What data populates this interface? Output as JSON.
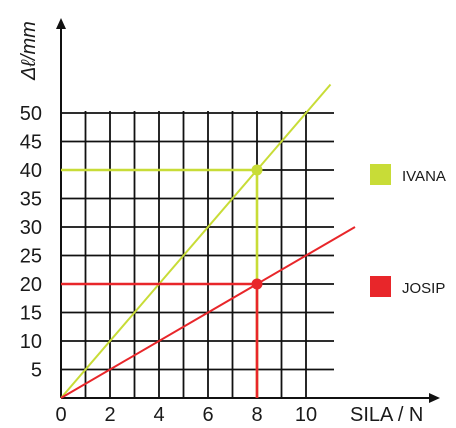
{
  "chart_data": {
    "type": "line",
    "xlabel": "SILA / N",
    "ylabel": "Δℓ/mm",
    "x_ticks": [
      0,
      2,
      4,
      6,
      8,
      10
    ],
    "y_ticks": [
      5,
      10,
      15,
      20,
      25,
      30,
      35,
      40,
      45,
      50
    ],
    "xlim": [
      0,
      11.5
    ],
    "ylim": [
      0,
      58
    ],
    "grid": true,
    "legend_position": "right",
    "series": [
      {
        "name": "IVANA",
        "color": "#c8dc37",
        "x": [
          0,
          11
        ],
        "y": [
          0,
          55
        ],
        "highlight_point": {
          "x": 8,
          "y": 40
        }
      },
      {
        "name": "JOSIP",
        "color": "#e8262a",
        "x": [
          0,
          12
        ],
        "y": [
          0,
          30
        ],
        "highlight_point": {
          "x": 8,
          "y": 20
        }
      }
    ]
  }
}
